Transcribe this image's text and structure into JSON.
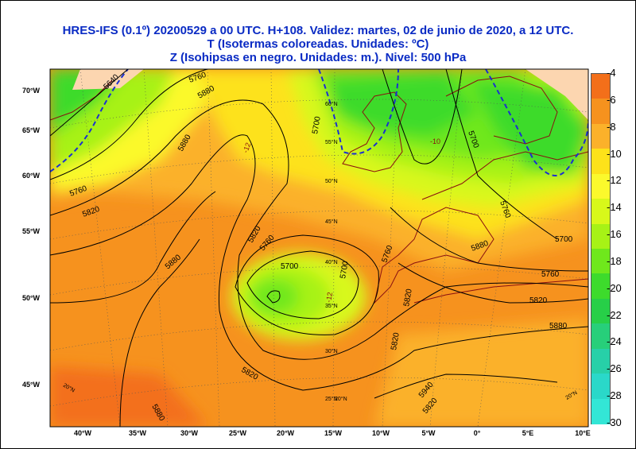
{
  "header": {
    "line1": "HRES-IFS (0.1º) 20200529 a 00 UTC.  H+108. Validez: martes, 02 de junio de 2020,  a  12 UTC.",
    "line2": "T (Isotermas coloreadas. Unidades: ºC)",
    "line3": "Z (Isohipsas en negro. Unidades: m.).   Nivel: 500 hPa"
  },
  "axes": {
    "lat_labels": [
      "70°W",
      "65°W",
      "60°W",
      "55°W",
      "50°W",
      "45°W"
    ],
    "lon_labels": [
      "40°W",
      "35°W",
      "30°W",
      "25°W",
      "20°W",
      "15°W",
      "10°W",
      "5°W",
      "0°",
      "5°E",
      "10°E"
    ],
    "inner_labels": [
      "60°N",
      "55°N",
      "50°N",
      "45°N",
      "40°N",
      "35°N",
      "30°N",
      "25°N",
      "20°N",
      "20°N",
      "20°N"
    ]
  },
  "contours": {
    "labels": [
      "5640",
      "5760",
      "5880",
      "5880",
      "5760",
      "5820",
      "5820",
      "5880",
      "5820",
      "5760",
      "5700",
      "5700",
      "5820",
      "5700",
      "5760",
      "5820",
      "5880",
      "5700",
      "5760",
      "5820",
      "5880",
      "5880",
      "5820",
      "5940",
      "5700",
      "5760"
    ]
  },
  "temperature_labels": [
    "-12",
    "-12",
    "-10"
  ],
  "legend": {
    "labels": [
      "-4",
      "-6",
      "-8",
      "-10",
      "-12",
      "-14",
      "-16",
      "-18",
      "-20",
      "-22",
      "-24",
      "-26",
      "-28",
      "-30"
    ],
    "colors": [
      "#f36f1a",
      "#f6921e",
      "#fbb12a",
      "#fde21a",
      "#fbf92c",
      "#d8f81a",
      "#a7f216",
      "#6fe81c",
      "#3ddb2c",
      "#27cf48",
      "#27cf7a",
      "#27d0a8",
      "#2ad8c9",
      "#33e6d6"
    ]
  },
  "colors": {
    "title": "#0a2bc4",
    "geopotential": "#000000",
    "coast": "#8a1010",
    "cold_isotherm": "#1b2fd0"
  }
}
